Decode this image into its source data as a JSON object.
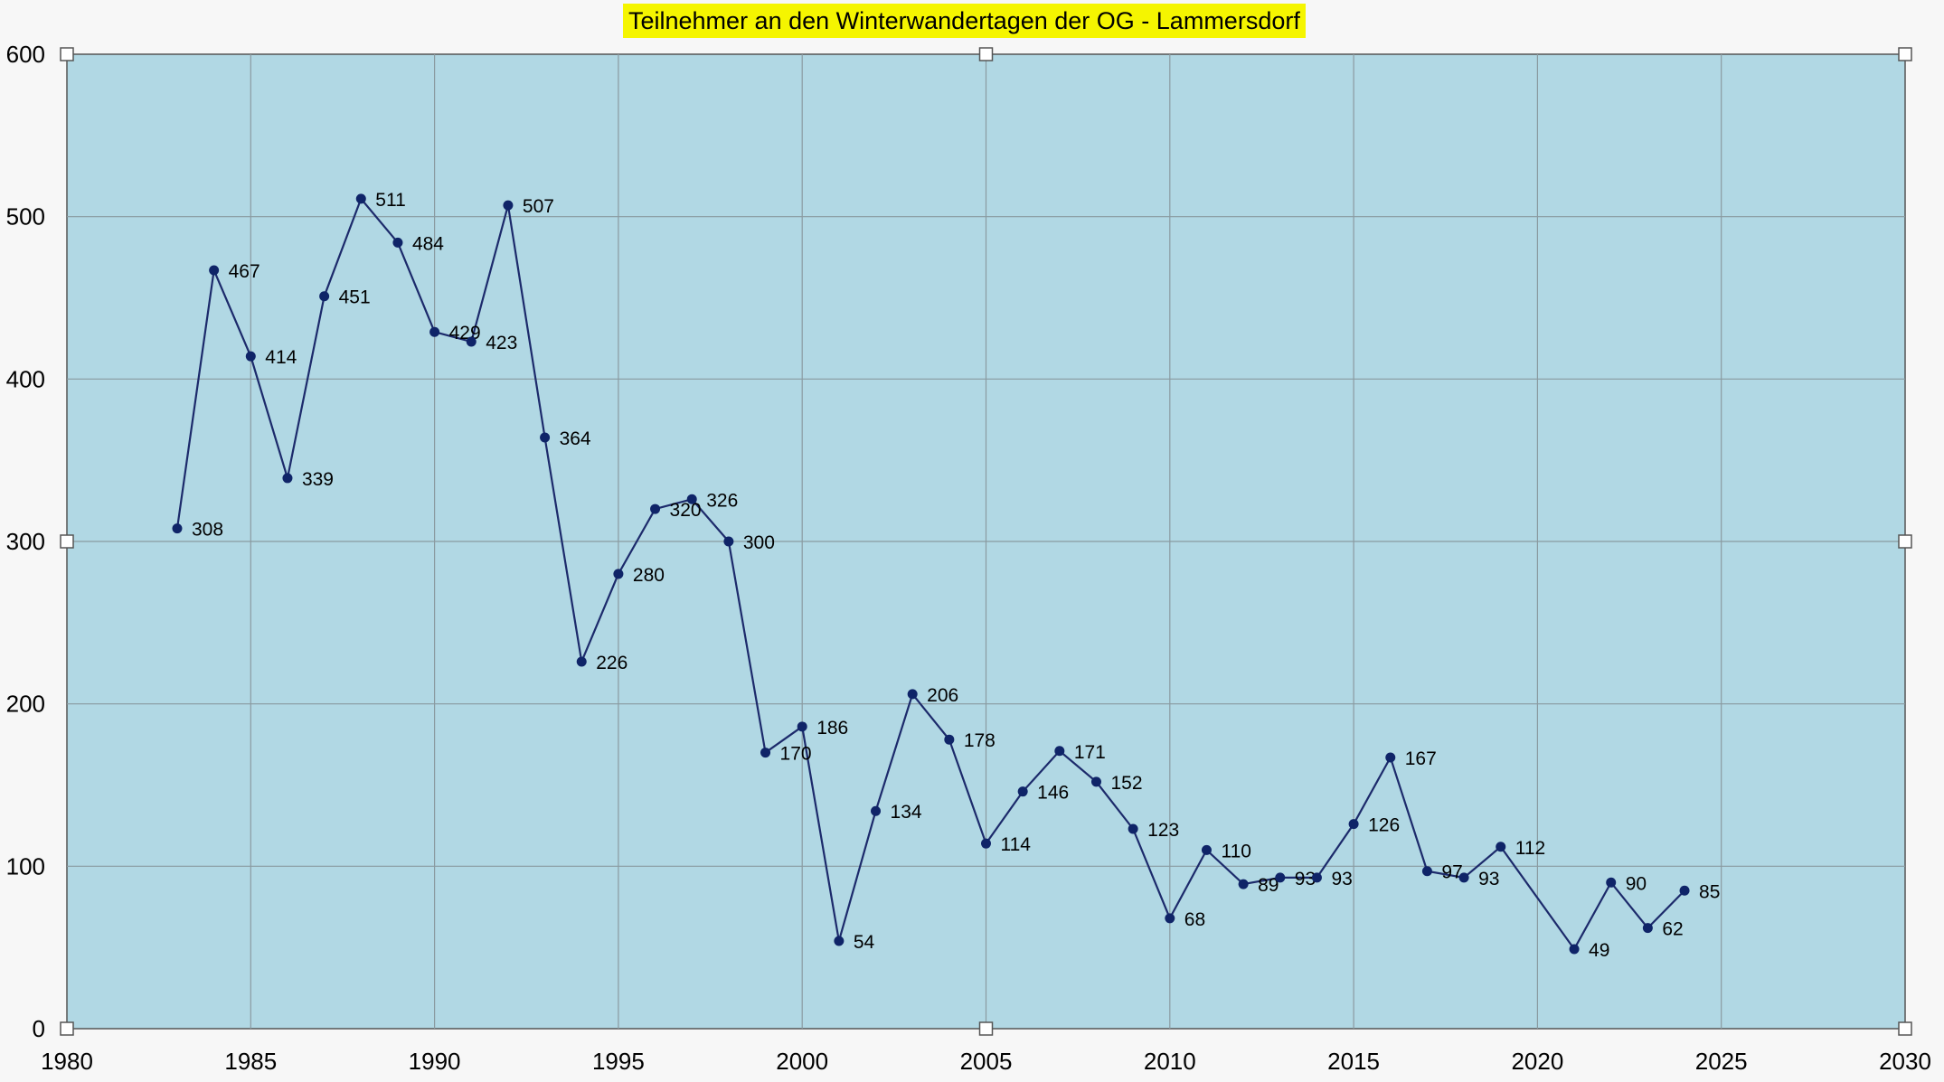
{
  "chart_data": {
    "type": "line",
    "title": "Teilnehmer an den Winterwandertagen der OG - Lammersdorf",
    "xlabel": "",
    "ylabel": "",
    "xlim": [
      1980,
      2030
    ],
    "ylim": [
      0,
      600
    ],
    "xticks": [
      1980,
      1985,
      1990,
      1995,
      2000,
      2005,
      2010,
      2015,
      2020,
      2025,
      2030
    ],
    "yticks": [
      0,
      100,
      200,
      300,
      400,
      500,
      600
    ],
    "grid": true,
    "legend": "none",
    "colors": {
      "plot_bg": "#b1d8e4",
      "line": "#1c2a6b",
      "marker": "#0f2468",
      "grid": "#8a9aa0",
      "title_bg": "#f5f500"
    },
    "series": [
      {
        "x": [
          1983,
          1984,
          1985,
          1986,
          1987,
          1988,
          1989,
          1990,
          1991,
          1992,
          1993,
          1994,
          1995,
          1996,
          1997,
          1998,
          1999,
          2000,
          2001,
          2002,
          2003,
          2004,
          2005,
          2006,
          2007,
          2008,
          2009,
          2010,
          2011,
          2012,
          2013,
          2014,
          2015,
          2016,
          2017,
          2018,
          2019,
          2021,
          2022,
          2023,
          2024
        ],
        "values": [
          308,
          467,
          414,
          339,
          451,
          511,
          484,
          429,
          423,
          507,
          364,
          226,
          280,
          320,
          326,
          300,
          170,
          186,
          54,
          134,
          206,
          178,
          114,
          146,
          171,
          152,
          123,
          68,
          110,
          89,
          93,
          93,
          126,
          167,
          97,
          93,
          112,
          49,
          90,
          62,
          85
        ]
      }
    ]
  }
}
